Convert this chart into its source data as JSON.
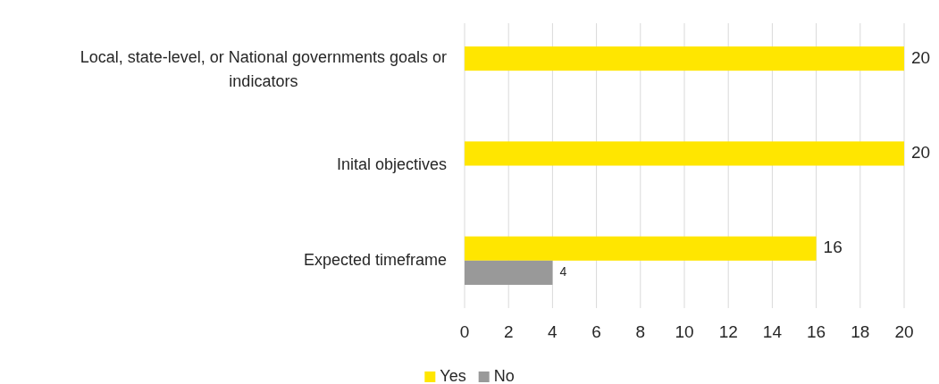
{
  "chart_data": {
    "type": "bar",
    "orientation": "horizontal",
    "categories": [
      "Local, state-level, or National governments goals or indicators",
      "Inital objectives",
      "Expected timeframe"
    ],
    "series": [
      {
        "name": "Yes",
        "color": "#ffe600",
        "values": [
          20,
          20,
          16
        ]
      },
      {
        "name": "No",
        "color": "#999999",
        "values": [
          null,
          null,
          4
        ]
      }
    ],
    "xlim": [
      0,
      20
    ],
    "xticks": [
      0,
      2,
      4,
      6,
      8,
      10,
      12,
      14,
      16,
      18,
      20
    ],
    "grid": "x",
    "legend": "bottom",
    "data_labels": true
  }
}
